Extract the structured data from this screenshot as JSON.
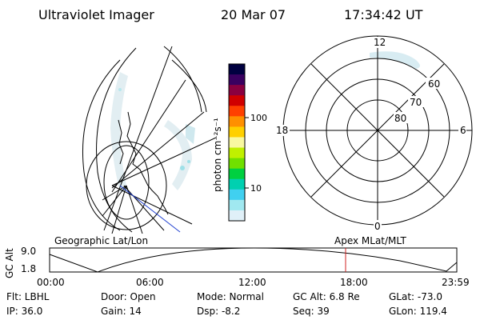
{
  "header": {
    "instrument": "Ultraviolet Imager",
    "date": "20 Mar 07",
    "time": "17:34:42 UT"
  },
  "colorbar": {
    "unit_label": "photon cm⁻²s⁻¹",
    "ticks": [
      "100",
      "10"
    ],
    "colors": [
      "#000040",
      "#3a0060",
      "#8a0040",
      "#d00000",
      "#ff4000",
      "#ff9000",
      "#ffd000",
      "#f8f8a0",
      "#c0f000",
      "#70e000",
      "#00d040",
      "#00d0b0",
      "#40d0f0",
      "#a0e8f0",
      "#e0f0f8"
    ]
  },
  "polar_plot": {
    "top_label": "12",
    "left_label": "18",
    "right_label": "6",
    "bottom_label": "0",
    "lat_labels": [
      "60",
      "70",
      "80"
    ]
  },
  "timeline": {
    "left_title": "Geographic Lat/Lon",
    "right_title": "Apex MLat/MLT",
    "y_axis_label": "GC Alt",
    "y_ticks": [
      "9.0",
      "1.8"
    ],
    "x_ticks": [
      "00:00",
      "06:00",
      "12:00",
      "18:00",
      "23:59"
    ],
    "marker_time": "17:34"
  },
  "status": {
    "filter": "Flt: LBHL",
    "door": "Door: Open",
    "mode": "Mode: Normal",
    "gc_alt": "GC Alt: 6.8 Re",
    "glat": "GLat: -73.0",
    "ip": "IP: 36.0",
    "gain": "Gain: 14",
    "dsp": "Dsp:   -8.2",
    "seq": "Seq: 39",
    "glon": "GLon: 119.4"
  }
}
